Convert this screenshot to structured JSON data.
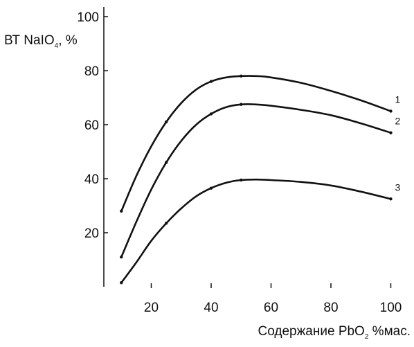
{
  "chart_data": {
    "type": "line",
    "title": "",
    "ylabel": {
      "main": "ВТ NaIO",
      "sub": "4",
      "suffix": ", %"
    },
    "xlabel": {
      "main": "Содержание PbO",
      "sub": "2",
      "suffix": " %мас."
    },
    "xlim": [
      5,
      100
    ],
    "ylim": [
      0,
      100
    ],
    "x_ticks": [
      20,
      40,
      60,
      80,
      100
    ],
    "y_ticks": [
      20,
      40,
      60,
      80,
      100
    ],
    "grid": false,
    "line_color": "#111111",
    "series": [
      {
        "name": "1",
        "x": [
          10,
          15,
          20,
          25,
          30,
          35,
          40,
          45,
          50,
          55,
          60,
          70,
          80,
          90,
          100
        ],
        "y": [
          28,
          41,
          52,
          61,
          68,
          73,
          76,
          77.5,
          78,
          78,
          77.5,
          75.5,
          72.5,
          69,
          65
        ]
      },
      {
        "name": "2",
        "x": [
          10,
          15,
          20,
          25,
          30,
          35,
          40,
          45,
          50,
          55,
          60,
          70,
          80,
          90,
          100
        ],
        "y": [
          11,
          24,
          36,
          46,
          54,
          60,
          64,
          66.5,
          67.5,
          67.5,
          67,
          65.5,
          63.5,
          60.5,
          57
        ]
      },
      {
        "name": "3",
        "x": [
          10,
          15,
          20,
          25,
          30,
          35,
          40,
          45,
          50,
          55,
          60,
          70,
          80,
          90,
          100
        ],
        "y": [
          1.5,
          9,
          17,
          23.5,
          29,
          33.5,
          36.5,
          38.5,
          39.5,
          39.7,
          39.5,
          38.8,
          37.5,
          35.2,
          32.5
        ]
      }
    ]
  }
}
